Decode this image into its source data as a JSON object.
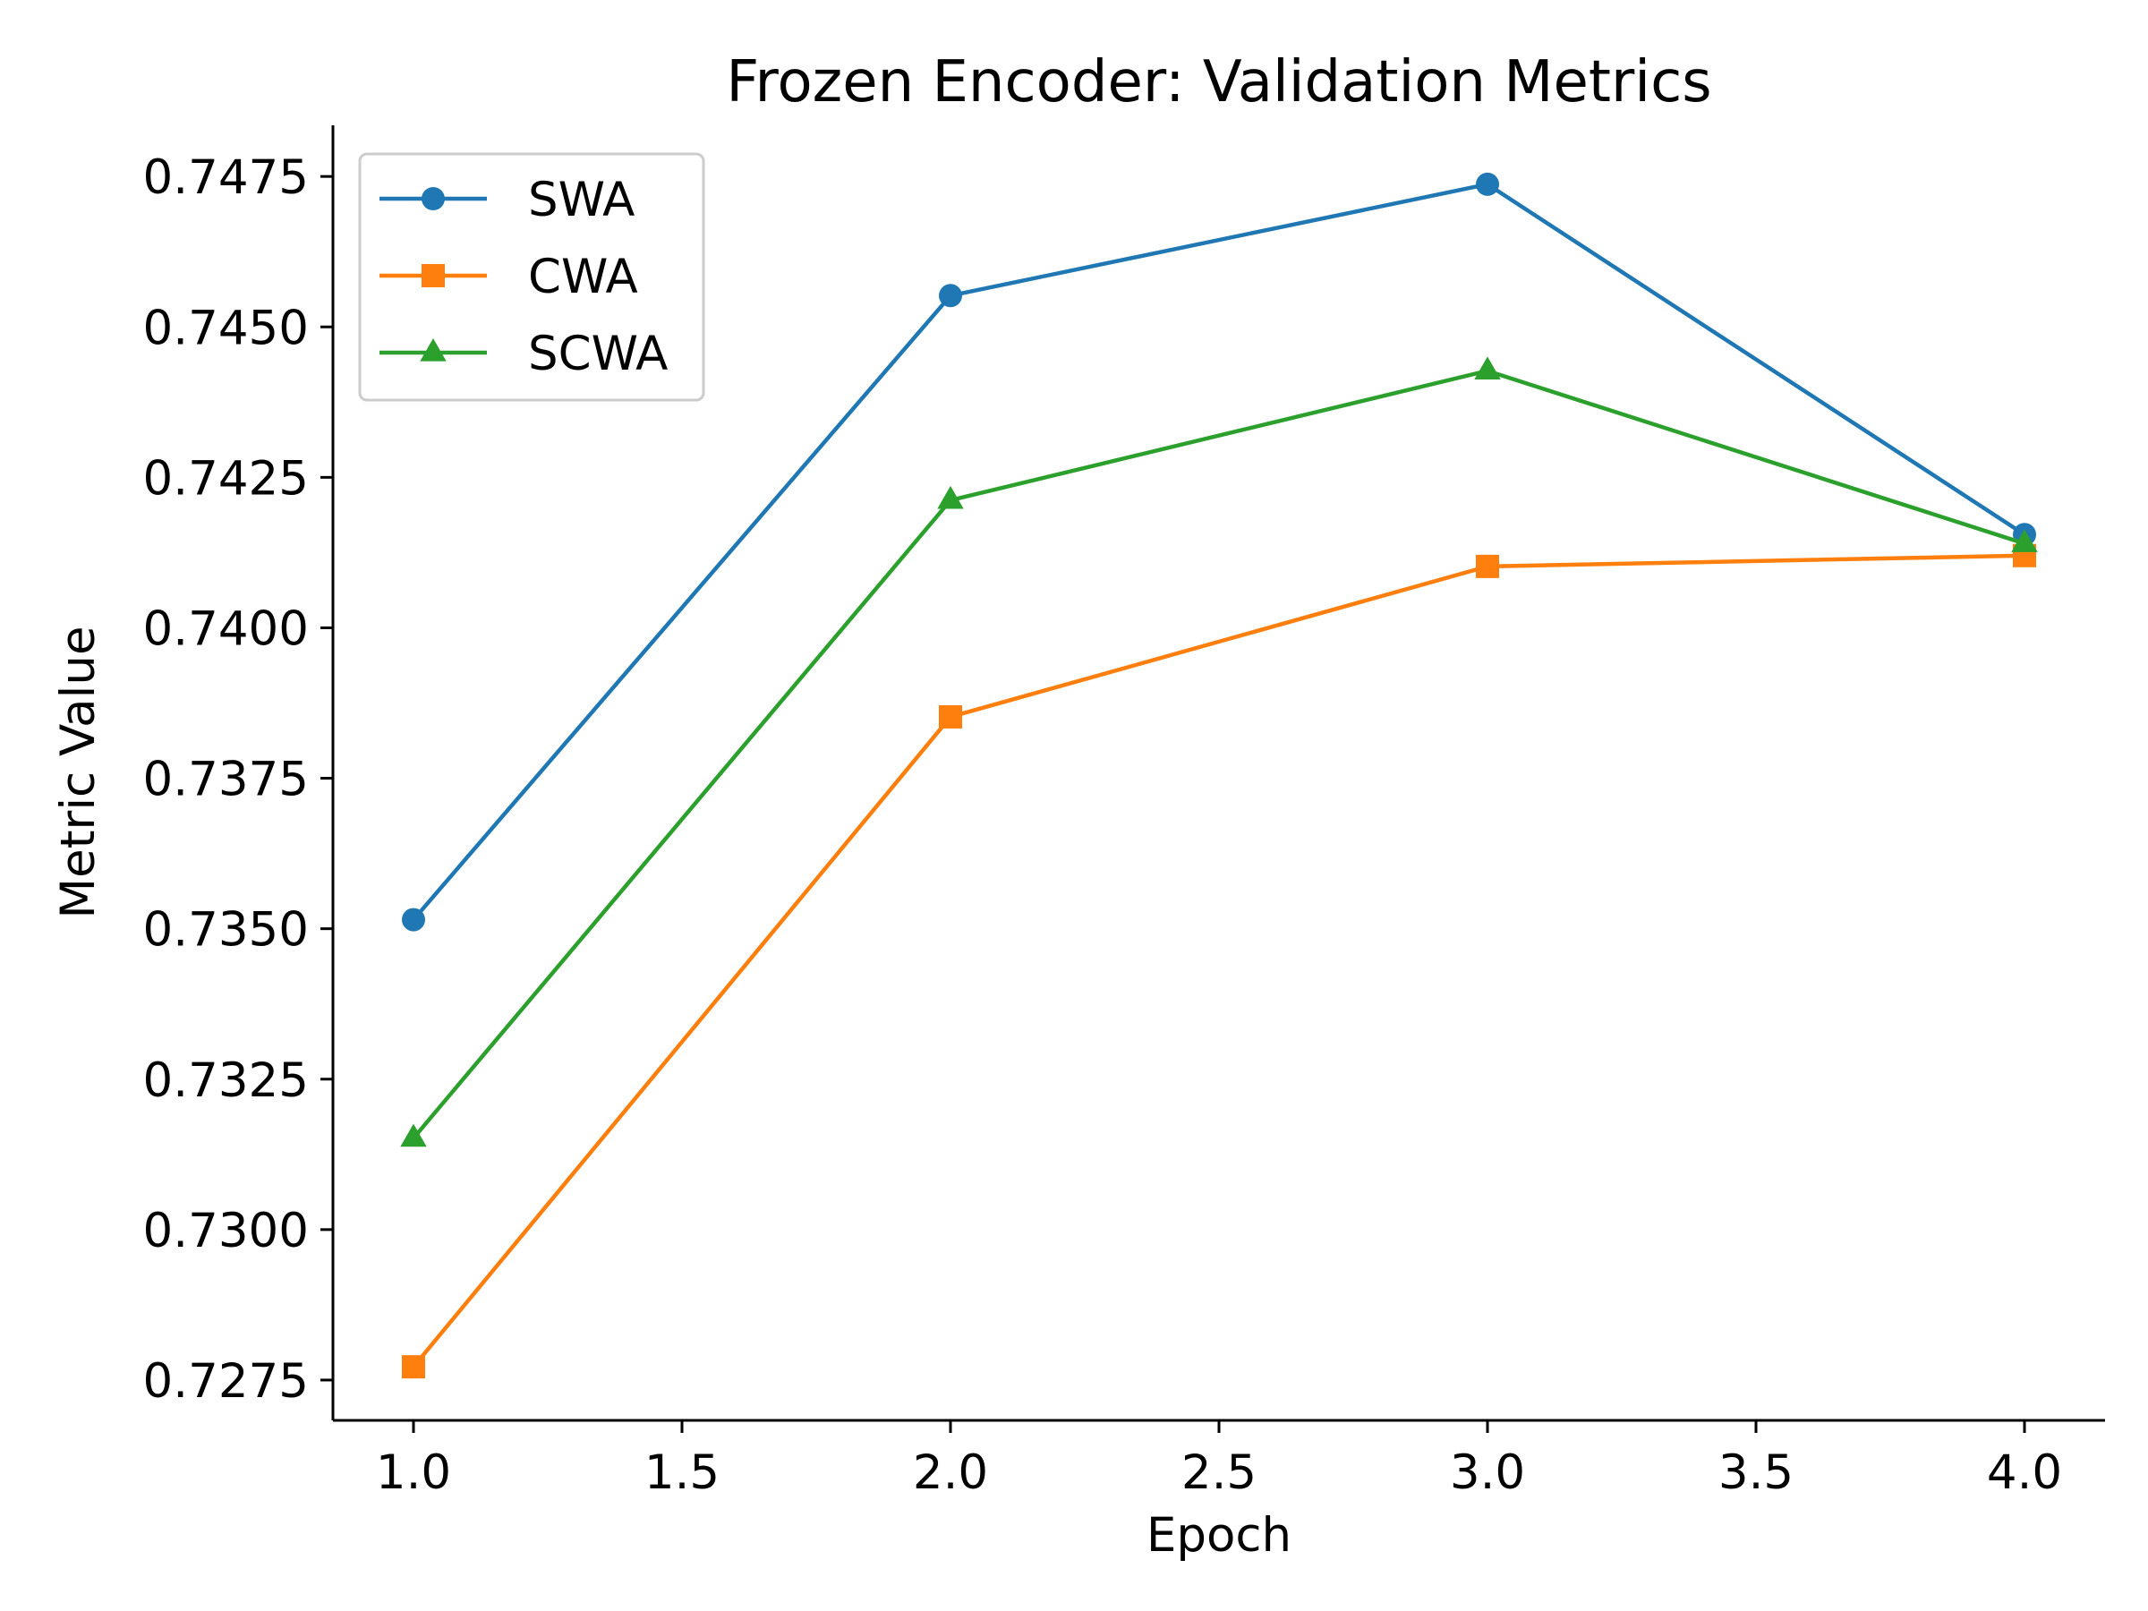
{
  "chart_data": {
    "type": "line",
    "title": "Frozen Encoder: Validation Metrics",
    "xlabel": "Epoch",
    "ylabel": "Metric Value",
    "x": [
      1.0,
      2.0,
      3.0,
      4.0
    ],
    "xlim": [
      0.85,
      4.15
    ],
    "ylim": [
      0.72683,
      0.74835
    ],
    "xticks": [
      1.0,
      1.5,
      2.0,
      2.5,
      3.0,
      3.5,
      4.0
    ],
    "xtick_labels": [
      "1.0",
      "1.5",
      "2.0",
      "2.5",
      "3.0",
      "3.5",
      "4.0"
    ],
    "yticks": [
      0.7275,
      0.73,
      0.7325,
      0.735,
      0.7375,
      0.74,
      0.7425,
      0.745,
      0.7475
    ],
    "ytick_labels": [
      "0.7275",
      "0.7300",
      "0.7325",
      "0.7350",
      "0.7375",
      "0.7400",
      "0.7425",
      "0.7450",
      "0.7475"
    ],
    "grid": false,
    "legend_position": "top-left",
    "series": [
      {
        "name": "SWA",
        "color": "#1f77b4",
        "marker": "circle",
        "values": [
          0.73515,
          0.74552,
          0.74737,
          0.74155
        ]
      },
      {
        "name": "CWA",
        "color": "#ff7f0e",
        "marker": "square",
        "values": [
          0.72772,
          0.73852,
          0.74102,
          0.7412
        ]
      },
      {
        "name": "SCWA",
        "color": "#2ca02c",
        "marker": "triangle",
        "values": [
          0.73152,
          0.74212,
          0.74427,
          0.7414
        ]
      }
    ]
  }
}
